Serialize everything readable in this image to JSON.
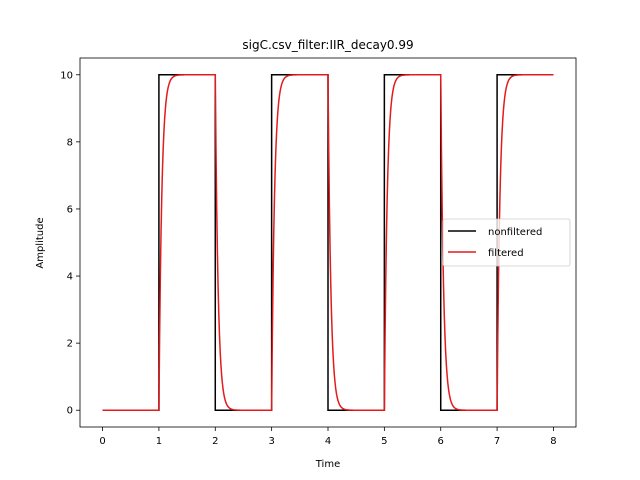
{
  "chart_data": {
    "type": "line",
    "title": "sigC.csv_filter:IIR_decay0.99",
    "xlabel": "Time",
    "ylabel": "Amplitude",
    "xlim": [
      -0.4,
      8.4
    ],
    "ylim": [
      -0.5,
      10.5
    ],
    "xticks": [
      0,
      1,
      2,
      3,
      4,
      5,
      6,
      7,
      8
    ],
    "yticks": [
      0,
      2,
      4,
      6,
      8,
      10
    ],
    "grid": false,
    "legend_position": "center-right",
    "series": [
      {
        "name": "nonfiltered",
        "color": "#000000",
        "style": "square-wave",
        "x": [
          0,
          1,
          1,
          2,
          2,
          3,
          3,
          4,
          4,
          5,
          5,
          6,
          6,
          7,
          7,
          8
        ],
        "y": [
          0,
          0,
          10,
          10,
          0,
          0,
          10,
          10,
          0,
          0,
          10,
          10,
          0,
          0,
          10,
          10
        ]
      },
      {
        "name": "filtered",
        "color": "#e41a1c",
        "style": "iir-filtered-square-wave",
        "time_constant": 0.05,
        "transitions": [
          {
            "t": 0,
            "level": 0
          },
          {
            "t": 1,
            "level": 10
          },
          {
            "t": 2,
            "level": 0
          },
          {
            "t": 3,
            "level": 10
          },
          {
            "t": 4,
            "level": 0
          },
          {
            "t": 5,
            "level": 10
          },
          {
            "t": 6,
            "level": 0
          },
          {
            "t": 7,
            "level": 10
          }
        ],
        "x_end": 8
      }
    ]
  }
}
